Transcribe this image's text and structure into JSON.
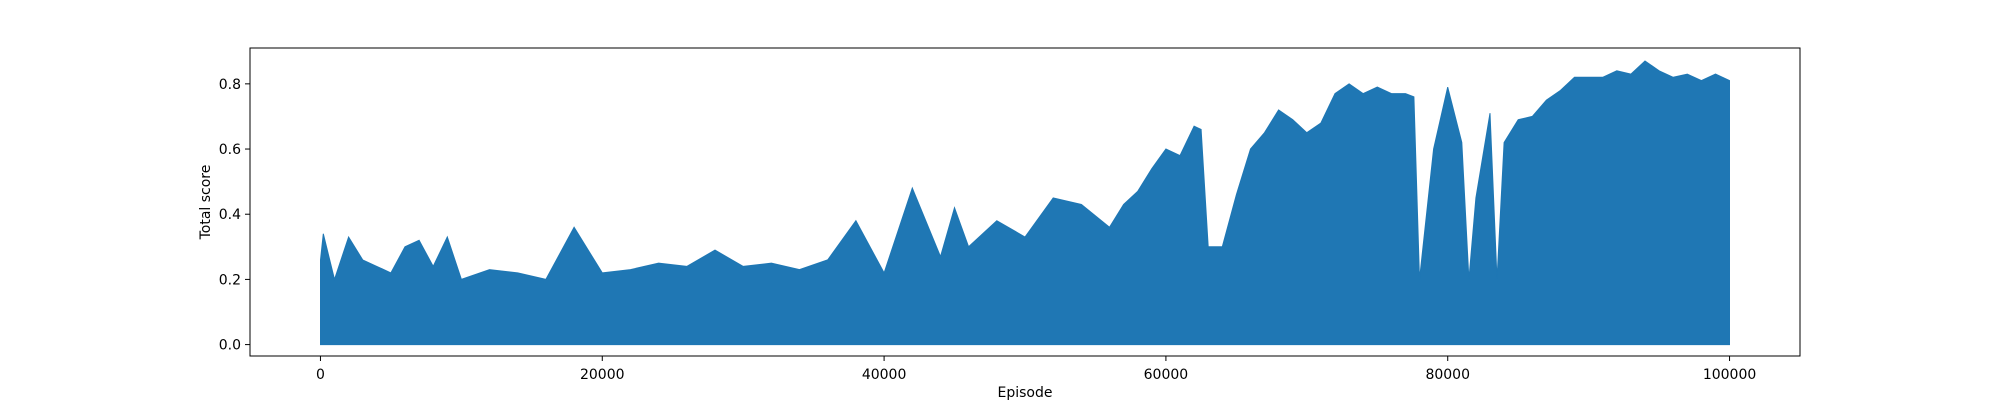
{
  "chart_data": {
    "type": "line",
    "title": "",
    "xlabel": "Episode",
    "ylabel": "Total score",
    "xlim": [
      -5000,
      105000
    ],
    "ylim": [
      -0.035,
      0.91
    ],
    "x_ticks": [
      0,
      20000,
      40000,
      60000,
      80000,
      100000
    ],
    "x_tick_labels": [
      "0",
      "20000",
      "40000",
      "60000",
      "80000",
      "100000"
    ],
    "y_ticks": [
      0.0,
      0.2,
      0.4,
      0.6,
      0.8
    ],
    "y_tick_labels": [
      "0.0",
      "0.2",
      "0.4",
      "0.6",
      "0.8"
    ],
    "grid": false,
    "series": [
      {
        "color": "#1f77b4",
        "note_dense_oscillation_min": 0.0,
        "x": [
          0,
          200,
          1000,
          2000,
          3000,
          4000,
          5000,
          6000,
          7000,
          8000,
          9000,
          10000,
          12000,
          14000,
          16000,
          18000,
          20000,
          22000,
          24000,
          26000,
          28000,
          30000,
          32000,
          34000,
          36000,
          38000,
          40000,
          42000,
          44000,
          45000,
          46000,
          48000,
          50000,
          52000,
          54000,
          56000,
          57000,
          58000,
          59000,
          60000,
          61000,
          62000,
          62500,
          63000,
          64000,
          65000,
          66000,
          67000,
          68000,
          69000,
          70000,
          71000,
          72000,
          73000,
          74000,
          75000,
          76000,
          77000,
          77600,
          78000,
          79000,
          80000,
          81000,
          81500,
          82000,
          83000,
          83500,
          84000,
          85000,
          86000,
          87000,
          88000,
          89000,
          90000,
          91000,
          92000,
          93000,
          94000,
          95000,
          96000,
          97000,
          98000,
          99000,
          100000
        ],
        "values": [
          0.26,
          0.34,
          0.2,
          0.33,
          0.26,
          0.24,
          0.22,
          0.3,
          0.32,
          0.24,
          0.33,
          0.2,
          0.23,
          0.22,
          0.2,
          0.36,
          0.22,
          0.23,
          0.25,
          0.24,
          0.29,
          0.24,
          0.25,
          0.23,
          0.26,
          0.38,
          0.22,
          0.48,
          0.27,
          0.42,
          0.3,
          0.38,
          0.33,
          0.45,
          0.43,
          0.36,
          0.43,
          0.47,
          0.54,
          0.6,
          0.58,
          0.67,
          0.66,
          0.3,
          0.3,
          0.46,
          0.6,
          0.65,
          0.72,
          0.69,
          0.65,
          0.68,
          0.77,
          0.8,
          0.77,
          0.79,
          0.77,
          0.77,
          0.76,
          0.2,
          0.6,
          0.79,
          0.62,
          0.2,
          0.45,
          0.71,
          0.2,
          0.62,
          0.69,
          0.7,
          0.75,
          0.78,
          0.82,
          0.82,
          0.82,
          0.84,
          0.83,
          0.87,
          0.84,
          0.82,
          0.83,
          0.81,
          0.83,
          0.81
        ]
      }
    ]
  }
}
